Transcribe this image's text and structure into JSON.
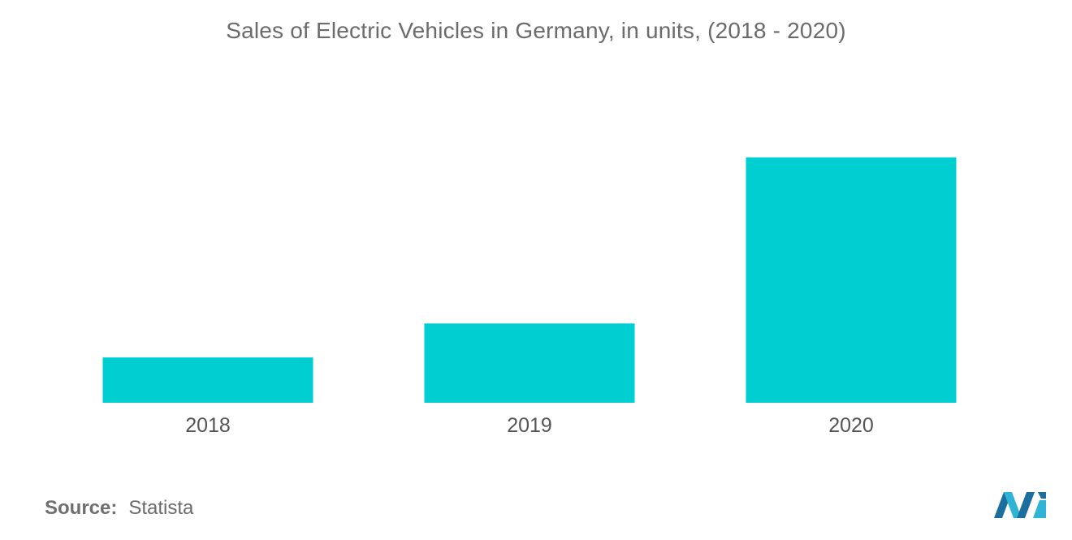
{
  "chart_data": {
    "type": "bar",
    "title": "Sales of Electric Vehicles in Germany, in units, (2018 - 2020)",
    "categories": [
      "2018",
      "2019",
      "2020"
    ],
    "values": [
      36000,
      63000,
      195000
    ],
    "ylim": [
      0,
      260000
    ],
    "xlabel": "",
    "ylabel": "",
    "grid": false,
    "color": "#00CED1"
  },
  "source": {
    "label": "Source:",
    "value": "Statista"
  },
  "logo": {
    "icon": "mordor-intelligence-logo",
    "colors": [
      "#1c6e9e",
      "#2fb4d6"
    ]
  }
}
